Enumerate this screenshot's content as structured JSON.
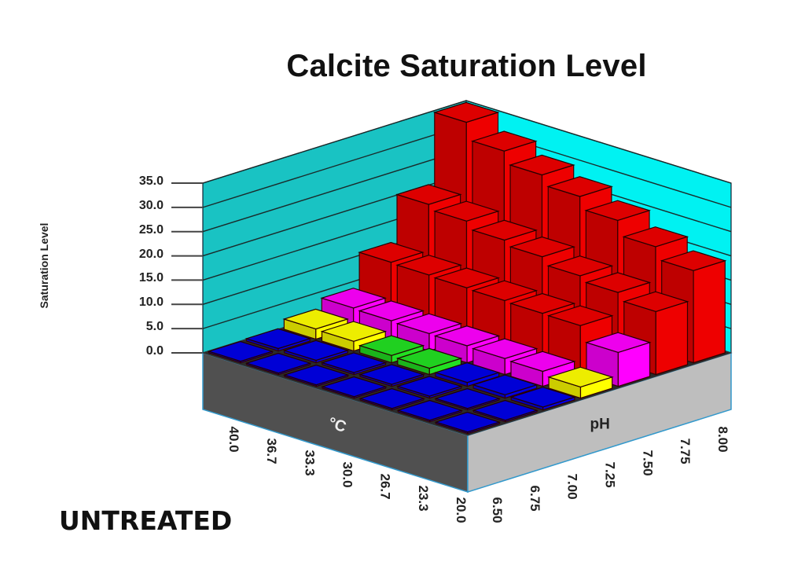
{
  "title": "Calcite Saturation Level",
  "subtitle_label": "UNTREATED",
  "colors": {
    "wall_left": "#19C3C3",
    "wall_right": "#00F2F2",
    "floor_left_side": "#505050",
    "floor_right_side": "#BEBEBE",
    "bin_0_1": "#0000E6",
    "bin_1_2": "#22E022",
    "bin_2_3": "#FFFF00",
    "bin_3_10": "#FF00FF",
    "bin_10_plus": "#EE0000"
  },
  "chart_data": {
    "type": "bar3d",
    "title": "Calcite Saturation Level",
    "zlabel": "Saturation Level",
    "xlabel": "°C",
    "ylabel": "pH",
    "zlim": [
      0,
      35
    ],
    "z_ticks": [
      "35.0",
      "30.0",
      "25.0",
      "20.0",
      "15.0",
      "10.0",
      "5.0",
      "0.0"
    ],
    "temperature_c": [
      "40.0",
      "36.7",
      "33.3",
      "30.0",
      "26.7",
      "23.3",
      "20.0"
    ],
    "ph": [
      "6.50",
      "6.75",
      "7.00",
      "7.25",
      "7.50",
      "7.75",
      "8.00"
    ],
    "values_by_ph": {
      "6.50": [
        0.3,
        0.3,
        0.3,
        0.3,
        0.3,
        0.3,
        0.3
      ],
      "6.75": [
        0.5,
        0.5,
        0.4,
        0.4,
        0.4,
        0.3,
        0.3
      ],
      "7.00": [
        2.1,
        2.0,
        1.5,
        1.3,
        0.8,
        0.7,
        0.6
      ],
      "7.25": [
        4.0,
        3.8,
        3.6,
        3.5,
        3.3,
        3.1,
        2.3
      ],
      "7.50": [
        11.0,
        10.8,
        10.6,
        10.4,
        10.2,
        10.1,
        7.0
      ],
      "7.75": [
        20.5,
        19.5,
        18.0,
        17.0,
        15.5,
        14.5,
        13.0
      ],
      "8.00": [
        35.0,
        31.5,
        29.0,
        27.0,
        24.5,
        21.5,
        19.0
      ]
    },
    "color_bins": [
      {
        "range": "0-1",
        "color": "blue"
      },
      {
        "range": "1-2",
        "color": "green"
      },
      {
        "range": "2-3",
        "color": "yellow"
      },
      {
        "range": "3-10",
        "color": "magenta"
      },
      {
        "range": ">10",
        "color": "red"
      }
    ],
    "grid": true,
    "legend": "none"
  }
}
